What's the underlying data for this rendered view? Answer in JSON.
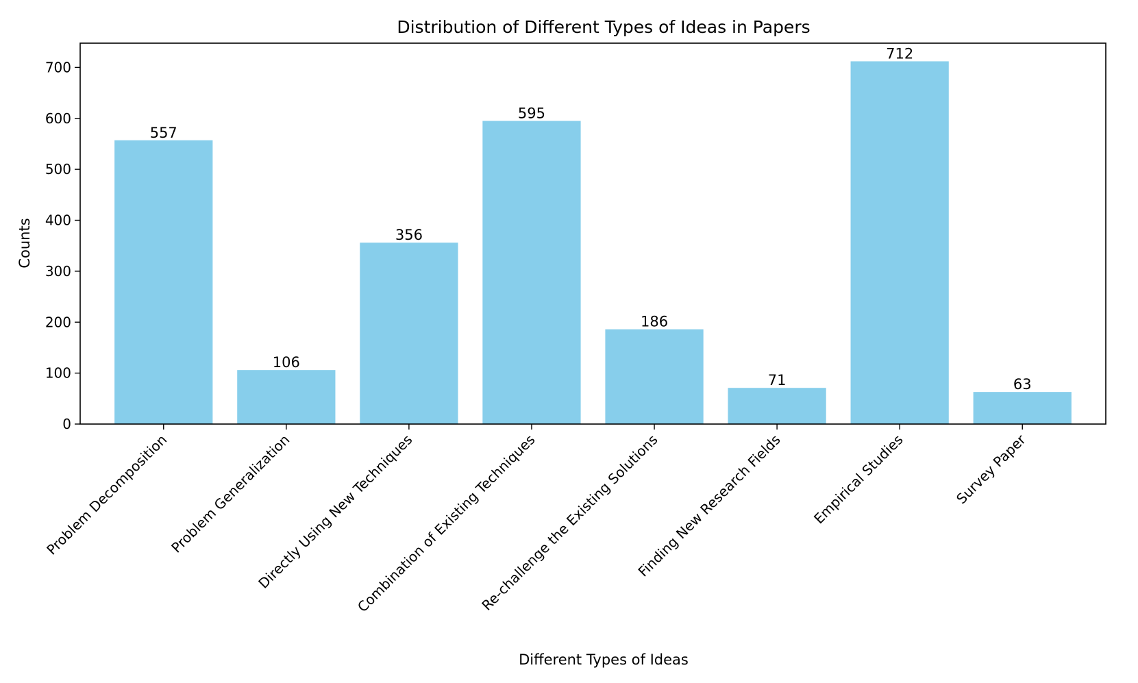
{
  "chart_data": {
    "type": "bar",
    "title": "Distribution of Different Types of Ideas in Papers",
    "xlabel": "Different Types of Ideas",
    "ylabel": "Counts",
    "categories": [
      "Problem Decomposition",
      "Problem Generalization",
      "Directly Using New Techniques",
      "Combination of Existing Techniques",
      "Re-challenge the Existing Solutions",
      "Finding New Research Fields",
      "Empirical Studies",
      "Survey Paper"
    ],
    "values": [
      557,
      106,
      356,
      595,
      186,
      71,
      712,
      63
    ],
    "data_labels": [
      "557",
      "106",
      "356",
      "595",
      "186",
      "71",
      "712",
      "63"
    ],
    "yticks": [
      0,
      100,
      200,
      300,
      400,
      500,
      600,
      700
    ],
    "ytick_labels": [
      "0",
      "100",
      "200",
      "300",
      "400",
      "500",
      "600",
      "700"
    ],
    "ylim": [
      0,
      747.6
    ],
    "bar_color": "#87CEEB",
    "grid": false,
    "legend": "none"
  }
}
